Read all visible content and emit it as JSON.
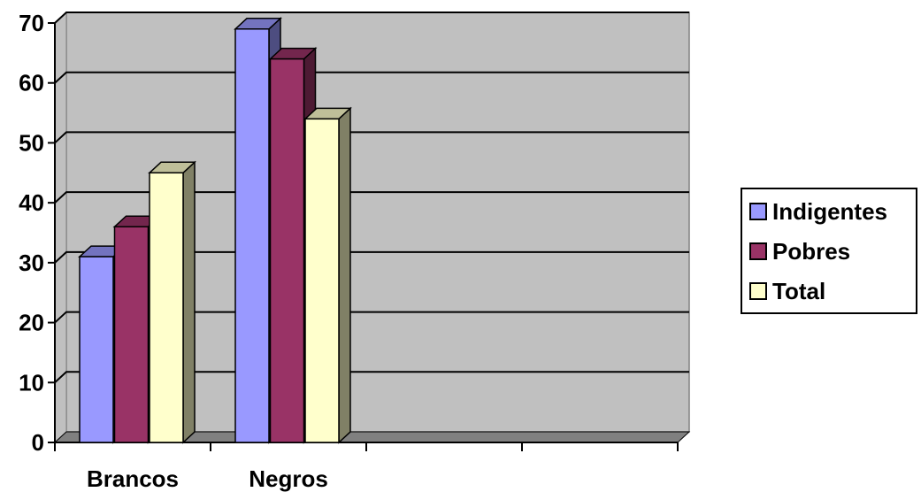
{
  "chart_data": {
    "type": "bar",
    "categories": [
      "Brancos",
      "Negros",
      "",
      ""
    ],
    "series": [
      {
        "name": "Indigentes",
        "values": [
          31,
          69,
          null,
          null
        ],
        "color": "#9999ff"
      },
      {
        "name": "Pobres",
        "values": [
          36,
          64,
          null,
          null
        ],
        "color": "#993366"
      },
      {
        "name": "Total",
        "values": [
          45,
          54,
          null,
          null
        ],
        "color": "#ffffcc"
      }
    ],
    "ylim": [
      0,
      70
    ],
    "yticks": [
      "0",
      "10",
      "20",
      "30",
      "40",
      "50",
      "60",
      "70"
    ],
    "grid": true,
    "legend_placement": "right",
    "plot_background": "#c0c0c0",
    "floor_color": "#808080"
  }
}
